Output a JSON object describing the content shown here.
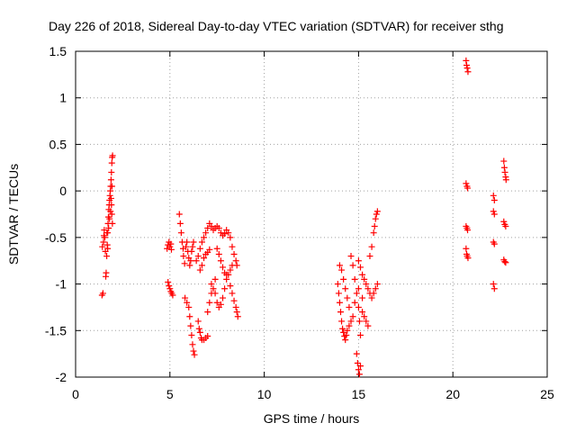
{
  "chart_data": {
    "type": "scatter",
    "title": "Day 226 of 2018, Sidereal Day-to-day VTEC variation (SDTVAR) for receiver sthg",
    "xlabel": "GPS time / hours",
    "ylabel": "SDTVAR / TECUs",
    "xlim": [
      0,
      25
    ],
    "ylim": [
      -2,
      1.5
    ],
    "xticks": [
      0,
      5,
      10,
      15,
      20,
      25
    ],
    "xtick_labels": [
      "0",
      "5",
      "10",
      "15",
      "20",
      "25"
    ],
    "yticks": [
      -2,
      -1.5,
      -1,
      -0.5,
      0,
      0.5,
      1,
      1.5
    ],
    "ytick_labels": [
      "-2",
      "-1.5",
      "-1",
      "-0.5",
      "0",
      "0.5",
      "1",
      "1.5"
    ],
    "grid": true,
    "marker": "plus",
    "color": "#ff0000",
    "series": [
      {
        "name": "SDTVAR",
        "points": [
          [
            1.4,
            -1.12
          ],
          [
            1.45,
            -1.1
          ],
          [
            1.42,
            -0.6
          ],
          [
            1.48,
            -0.55
          ],
          [
            1.5,
            -0.48
          ],
          [
            1.52,
            -0.42
          ],
          [
            1.55,
            -0.5
          ],
          [
            1.58,
            -0.65
          ],
          [
            1.6,
            -0.92
          ],
          [
            1.62,
            -0.88
          ],
          [
            1.65,
            -0.7
          ],
          [
            1.68,
            -0.58
          ],
          [
            1.7,
            -0.45
          ],
          [
            1.72,
            -0.35
          ],
          [
            1.74,
            -0.28
          ],
          [
            1.76,
            -0.2
          ],
          [
            1.78,
            -0.15
          ],
          [
            1.8,
            -0.1
          ],
          [
            1.82,
            -0.05
          ],
          [
            1.84,
            0.0
          ],
          [
            1.86,
            0.05
          ],
          [
            1.88,
            0.12
          ],
          [
            1.9,
            0.2
          ],
          [
            1.92,
            0.3
          ],
          [
            1.94,
            0.36
          ],
          [
            1.96,
            0.38
          ],
          [
            1.75,
            -0.4
          ],
          [
            1.8,
            -0.3
          ],
          [
            1.85,
            -0.22
          ],
          [
            1.9,
            -0.15
          ],
          [
            1.92,
            -0.25
          ],
          [
            1.95,
            -0.35
          ],
          [
            1.7,
            -0.62
          ],
          [
            1.66,
            -0.45
          ],
          [
            1.88,
            -0.08
          ],
          [
            1.93,
            0.05
          ],
          [
            4.85,
            -0.62
          ],
          [
            4.9,
            -0.58
          ],
          [
            4.95,
            -0.55
          ],
          [
            5.0,
            -0.6
          ],
          [
            5.05,
            -0.57
          ],
          [
            5.08,
            -0.63
          ],
          [
            4.9,
            -0.98
          ],
          [
            4.95,
            -1.02
          ],
          [
            5.0,
            -1.05
          ],
          [
            5.05,
            -1.08
          ],
          [
            5.1,
            -1.1
          ],
          [
            5.15,
            -1.12
          ],
          [
            5.5,
            -0.25
          ],
          [
            5.55,
            -0.35
          ],
          [
            5.6,
            -0.45
          ],
          [
            5.65,
            -0.55
          ],
          [
            5.7,
            -0.62
          ],
          [
            5.72,
            -0.7
          ],
          [
            5.78,
            -0.78
          ],
          [
            5.85,
            -0.6
          ],
          [
            5.9,
            -0.55
          ],
          [
            5.95,
            -0.65
          ],
          [
            6.0,
            -0.72
          ],
          [
            6.05,
            -0.8
          ],
          [
            6.1,
            -0.75
          ],
          [
            6.15,
            -0.65
          ],
          [
            6.2,
            -0.6
          ],
          [
            6.25,
            -0.55
          ],
          [
            5.8,
            -1.15
          ],
          [
            5.9,
            -1.2
          ],
          [
            6.0,
            -1.25
          ],
          [
            6.05,
            -1.35
          ],
          [
            6.1,
            -1.45
          ],
          [
            6.15,
            -1.55
          ],
          [
            6.2,
            -1.65
          ],
          [
            6.25,
            -1.72
          ],
          [
            6.3,
            -1.76
          ],
          [
            6.4,
            -0.75
          ],
          [
            6.5,
            -0.7
          ],
          [
            6.6,
            -0.62
          ],
          [
            6.7,
            -0.55
          ],
          [
            6.8,
            -0.5
          ],
          [
            6.9,
            -0.45
          ],
          [
            7.0,
            -0.4
          ],
          [
            7.1,
            -0.35
          ],
          [
            7.2,
            -0.38
          ],
          [
            7.3,
            -0.42
          ],
          [
            7.4,
            -0.4
          ],
          [
            7.5,
            -0.38
          ],
          [
            7.6,
            -0.4
          ],
          [
            7.7,
            -0.45
          ],
          [
            7.8,
            -0.48
          ],
          [
            7.9,
            -0.46
          ],
          [
            8.0,
            -0.42
          ],
          [
            8.1,
            -0.45
          ],
          [
            8.2,
            -0.5
          ],
          [
            6.6,
            -0.85
          ],
          [
            6.7,
            -0.8
          ],
          [
            6.8,
            -0.72
          ],
          [
            6.9,
            -0.68
          ],
          [
            7.0,
            -0.66
          ],
          [
            7.1,
            -0.63
          ],
          [
            6.5,
            -1.4
          ],
          [
            6.55,
            -1.48
          ],
          [
            6.6,
            -1.52
          ],
          [
            6.65,
            -1.58
          ],
          [
            6.7,
            -1.6
          ],
          [
            6.8,
            -1.6
          ],
          [
            6.9,
            -1.58
          ],
          [
            7.0,
            -1.56
          ],
          [
            7.0,
            -1.3
          ],
          [
            7.1,
            -1.2
          ],
          [
            7.2,
            -1.1
          ],
          [
            7.3,
            -1.05
          ],
          [
            7.4,
            -1.1
          ],
          [
            7.5,
            -1.2
          ],
          [
            7.6,
            -1.25
          ],
          [
            7.7,
            -1.22
          ],
          [
            7.8,
            -1.15
          ],
          [
            7.9,
            -1.05
          ],
          [
            8.0,
            -0.95
          ],
          [
            8.1,
            -0.9
          ],
          [
            8.2,
            -0.85
          ],
          [
            8.3,
            -0.8
          ],
          [
            7.5,
            -0.62
          ],
          [
            7.6,
            -0.68
          ],
          [
            7.7,
            -0.75
          ],
          [
            7.8,
            -0.82
          ],
          [
            7.9,
            -0.88
          ],
          [
            8.0,
            -0.9
          ],
          [
            8.2,
            -1.02
          ],
          [
            8.3,
            -1.1
          ],
          [
            8.4,
            -1.18
          ],
          [
            8.5,
            -1.25
          ],
          [
            8.55,
            -1.3
          ],
          [
            8.6,
            -1.35
          ],
          [
            8.3,
            -0.6
          ],
          [
            8.4,
            -0.68
          ],
          [
            8.5,
            -0.75
          ],
          [
            8.55,
            -0.8
          ],
          [
            7.2,
            -1.0
          ],
          [
            7.4,
            -0.95
          ],
          [
            13.9,
            -1.0
          ],
          [
            13.95,
            -1.1
          ],
          [
            14.0,
            -1.2
          ],
          [
            14.05,
            -1.3
          ],
          [
            14.1,
            -1.4
          ],
          [
            14.15,
            -1.48
          ],
          [
            14.2,
            -1.52
          ],
          [
            14.25,
            -1.56
          ],
          [
            14.3,
            -1.6
          ],
          [
            14.35,
            -1.55
          ],
          [
            14.4,
            -1.5
          ],
          [
            14.5,
            -1.45
          ],
          [
            14.6,
            -1.4
          ],
          [
            14.7,
            -1.35
          ],
          [
            14.0,
            -0.8
          ],
          [
            14.1,
            -0.85
          ],
          [
            14.2,
            -0.95
          ],
          [
            14.3,
            -1.05
          ],
          [
            14.4,
            -1.15
          ],
          [
            14.5,
            -1.25
          ],
          [
            14.6,
            -0.7
          ],
          [
            14.7,
            -0.8
          ],
          [
            14.8,
            -0.95
          ],
          [
            14.9,
            -1.1
          ],
          [
            15.0,
            -1.25
          ],
          [
            15.05,
            -1.4
          ],
          [
            15.1,
            -1.55
          ],
          [
            14.9,
            -1.75
          ],
          [
            14.95,
            -1.85
          ],
          [
            15.0,
            -1.92
          ],
          [
            15.05,
            -1.97
          ],
          [
            15.1,
            -1.88
          ],
          [
            15.0,
            -0.75
          ],
          [
            15.1,
            -0.82
          ],
          [
            15.2,
            -0.9
          ],
          [
            15.3,
            -0.95
          ],
          [
            15.4,
            -1.0
          ],
          [
            15.5,
            -1.05
          ],
          [
            15.6,
            -1.1
          ],
          [
            15.7,
            -1.15
          ],
          [
            15.8,
            -1.1
          ],
          [
            15.9,
            -1.05
          ],
          [
            16.0,
            -1.0
          ],
          [
            15.2,
            -1.3
          ],
          [
            15.3,
            -1.35
          ],
          [
            15.4,
            -1.4
          ],
          [
            15.5,
            -1.45
          ],
          [
            15.6,
            -0.7
          ],
          [
            15.7,
            -0.6
          ],
          [
            15.8,
            -0.45
          ],
          [
            15.85,
            -0.38
          ],
          [
            15.9,
            -0.3
          ],
          [
            15.95,
            -0.25
          ],
          [
            16.0,
            -0.22
          ],
          [
            14.8,
            -1.2
          ],
          [
            15.0,
            -1.05
          ],
          [
            15.2,
            -1.15
          ],
          [
            20.7,
            1.4
          ],
          [
            20.73,
            1.35
          ],
          [
            20.76,
            1.32
          ],
          [
            20.8,
            1.28
          ],
          [
            20.7,
            0.08
          ],
          [
            20.75,
            0.05
          ],
          [
            20.78,
            0.03
          ],
          [
            20.7,
            -0.38
          ],
          [
            20.75,
            -0.4
          ],
          [
            20.78,
            -0.42
          ],
          [
            20.7,
            -0.62
          ],
          [
            20.73,
            -0.68
          ],
          [
            20.76,
            -0.7
          ],
          [
            20.8,
            -0.72
          ],
          [
            22.15,
            -0.05
          ],
          [
            22.2,
            -0.1
          ],
          [
            22.15,
            -0.22
          ],
          [
            22.2,
            -0.25
          ],
          [
            22.15,
            -0.55
          ],
          [
            22.2,
            -0.57
          ],
          [
            22.15,
            -1.0
          ],
          [
            22.2,
            -1.05
          ],
          [
            22.7,
            0.32
          ],
          [
            22.73,
            0.25
          ],
          [
            22.76,
            0.2
          ],
          [
            22.8,
            0.15
          ],
          [
            22.82,
            0.12
          ],
          [
            22.7,
            -0.33
          ],
          [
            22.75,
            -0.36
          ],
          [
            22.8,
            -0.38
          ],
          [
            22.7,
            -0.74
          ],
          [
            22.75,
            -0.76
          ],
          [
            22.8,
            -0.77
          ]
        ]
      }
    ]
  }
}
